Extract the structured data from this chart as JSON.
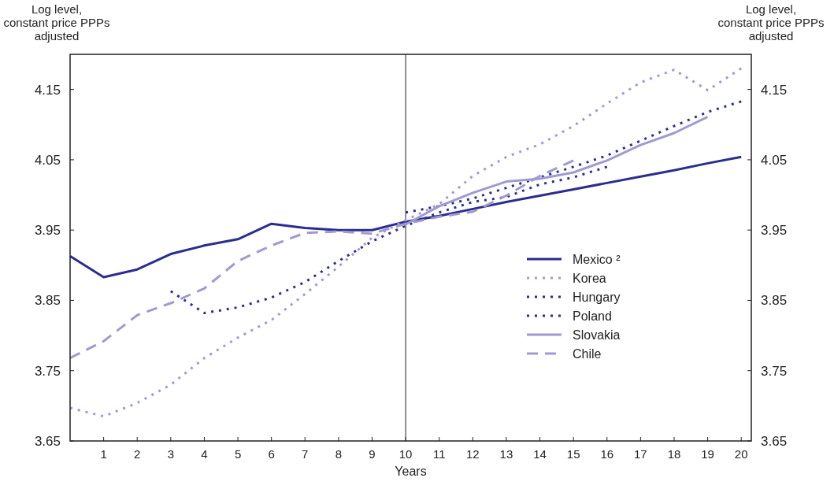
{
  "chart_data": {
    "type": "line",
    "xlabel": "Years",
    "ylabel": "Log level, constant price PPPs adjusted",
    "y2label": "Log level, constant price PPPs adjusted",
    "x": [
      0,
      1,
      2,
      3,
      4,
      5,
      6,
      7,
      8,
      9,
      10,
      11,
      12,
      13,
      14,
      15,
      16,
      17,
      18,
      19,
      20
    ],
    "series": [
      {
        "name": "Mexico ²",
        "color": "#2b2d8e",
        "line_style": "solid",
        "values": [
          3.913,
          3.883,
          3.894,
          3.916,
          3.928,
          3.937,
          3.959,
          3.953,
          3.95,
          3.95,
          3.962,
          3.97,
          3.98,
          3.99,
          3.999,
          4.008,
          4.017,
          4.026,
          4.035,
          4.045,
          4.054
        ]
      },
      {
        "name": "Korea",
        "color": "#a09ad0",
        "line_style": "dotted",
        "values": [
          3.697,
          3.685,
          3.704,
          3.73,
          3.768,
          3.797,
          3.822,
          3.859,
          3.898,
          3.939,
          3.964,
          3.987,
          4.027,
          4.054,
          4.072,
          4.098,
          4.13,
          4.16,
          4.178,
          4.149,
          4.18
        ]
      },
      {
        "name": "Hungary",
        "color": "#2b2d8e",
        "line_style": "dotted",
        "values": [
          null,
          null,
          null,
          3.863,
          3.832,
          3.84,
          3.854,
          3.876,
          3.906,
          3.934,
          3.956,
          3.975,
          3.99,
          3.997,
          4.015,
          4.025,
          4.04,
          null,
          null,
          null,
          null
        ]
      },
      {
        "name": "Poland",
        "color": "#2b2d8e",
        "line_style": "dotted",
        "values": [
          null,
          null,
          null,
          null,
          null,
          null,
          null,
          null,
          null,
          null,
          3.975,
          3.984,
          3.995,
          4.01,
          4.025,
          4.04,
          4.056,
          4.077,
          4.098,
          4.118,
          4.133
        ]
      },
      {
        "name": "Slovakia",
        "color": "#a09ad0",
        "line_style": "solid",
        "values": [
          null,
          null,
          null,
          null,
          null,
          null,
          null,
          null,
          null,
          null,
          3.958,
          3.984,
          4.003,
          4.019,
          4.023,
          4.032,
          4.049,
          4.071,
          4.088,
          4.111,
          null
        ]
      },
      {
        "name": "Chile",
        "color": "#a09ad0",
        "line_style": "dashed",
        "values": [
          3.768,
          3.792,
          3.829,
          3.846,
          3.867,
          3.906,
          3.928,
          3.946,
          3.948,
          3.945,
          3.959,
          3.969,
          3.976,
          3.999,
          4.027,
          4.049,
          null,
          null,
          null,
          null,
          null
        ]
      }
    ],
    "xlim": [
      0,
      20.3
    ],
    "xticks": [
      1,
      2,
      3,
      4,
      5,
      6,
      7,
      8,
      9,
      10,
      11,
      12,
      13,
      14,
      15,
      16,
      17,
      18,
      19,
      20
    ],
    "ylim": [
      3.65,
      4.2
    ],
    "yticks": [
      3.65,
      3.75,
      3.85,
      3.95,
      4.05,
      4.15
    ],
    "y2lim": [
      3.65,
      4.2
    ],
    "y2ticks": [
      3.65,
      3.75,
      3.85,
      3.95,
      4.05,
      4.15
    ],
    "ref_lines": [
      {
        "axis": "x",
        "value": 10,
        "color": "#222222",
        "line_style": "solid"
      }
    ],
    "grid": false,
    "legend": "right",
    "marker": "none"
  }
}
